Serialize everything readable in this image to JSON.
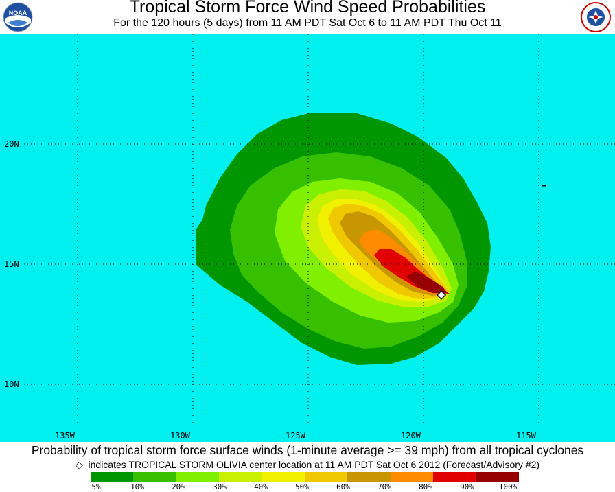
{
  "title": "Tropical Storm Force Wind Speed Probabilities",
  "subtitle": "For the 120 hours (5 days) from 11 AM PDT Sat Oct 6 to 11 AM PDT Thu Oct 11",
  "caption": "Probability of tropical storm force surface winds (1-minute average >= 39 mph) from all tropical cyclones",
  "legend_note": {
    "symbol": "◇",
    "text": "indicates TROPICAL STORM OLIVIA center location at 11 AM PDT Sat Oct 6 2012 (Forecast/Advisory #2)"
  },
  "logos": {
    "left": "noaa-logo",
    "right": "nws-logo",
    "left_text": "NOAA"
  },
  "map": {
    "background_color": "#00f0f0",
    "lat_labels": [
      {
        "label": "20N",
        "lat": 20
      },
      {
        "label": "15N",
        "lat": 15
      },
      {
        "label": "10N",
        "lat": 10
      }
    ],
    "lon_labels": [
      {
        "label": "135W",
        "lon": -135
      },
      {
        "label": "130W",
        "lon": -130
      },
      {
        "label": "125W",
        "lon": -125
      },
      {
        "label": "120W",
        "lon": -120
      },
      {
        "label": "115W",
        "lon": -115
      }
    ],
    "storm_center": {
      "lat": 13.8,
      "lon": -118.9,
      "name": "TROPICAL STORM OLIVIA"
    },
    "grid": "dotted"
  },
  "scale": {
    "labels": [
      "5%",
      "10%",
      "20%",
      "30%",
      "40%",
      "50%",
      "60%",
      "70%",
      "80%",
      "90%",
      "100%"
    ],
    "colors": [
      "#009600",
      "#36c000",
      "#80f000",
      "#c8f000",
      "#f0f000",
      "#f0c800",
      "#c89600",
      "#ff8c00",
      "#e00000",
      "#960000",
      "#960096"
    ]
  }
}
